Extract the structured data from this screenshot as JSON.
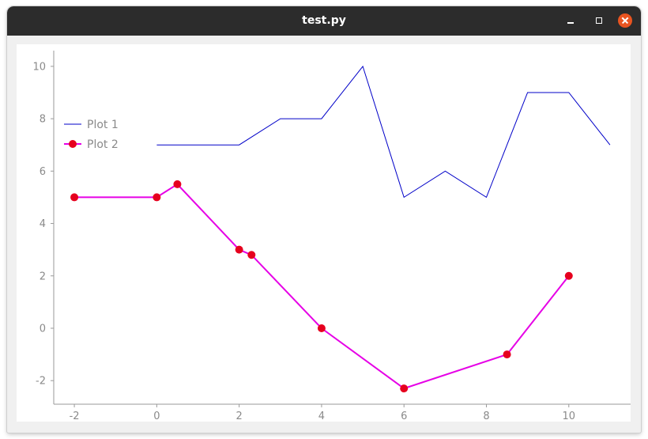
{
  "window": {
    "title": "test.py"
  },
  "chart_data": {
    "type": "line",
    "xlim": [
      -2.5,
      11.5
    ],
    "ylim": [
      -2.9,
      10.6
    ],
    "xticks": [
      -2,
      0,
      2,
      4,
      6,
      8,
      10
    ],
    "yticks": [
      -2,
      0,
      2,
      4,
      6,
      8,
      10
    ],
    "tick_labels_x": [
      "-2",
      "0",
      "2",
      "4",
      "6",
      "8",
      "10"
    ],
    "tick_labels_y": [
      "-2",
      "0",
      "2",
      "4",
      "6",
      "8",
      "10"
    ],
    "grid": false,
    "legend_position": "top-left",
    "series": [
      {
        "name": "Plot 1",
        "color": "#0000c8",
        "marker": "none",
        "x": [
          0,
          1,
          2,
          3,
          4,
          5,
          6,
          7,
          8,
          9,
          10,
          11
        ],
        "y": [
          7,
          7,
          7,
          8,
          8,
          10,
          5,
          6,
          5,
          9,
          9,
          7
        ]
      },
      {
        "name": "Plot 2",
        "color": "#e600e6",
        "marker": "circle",
        "marker_color": "#e6001e",
        "x": [
          -2,
          0,
          0.5,
          2,
          2.3,
          4,
          6,
          8.5,
          10
        ],
        "y": [
          5,
          5,
          5.5,
          3,
          2.8,
          0,
          -2.3,
          -1,
          2
        ]
      }
    ]
  }
}
